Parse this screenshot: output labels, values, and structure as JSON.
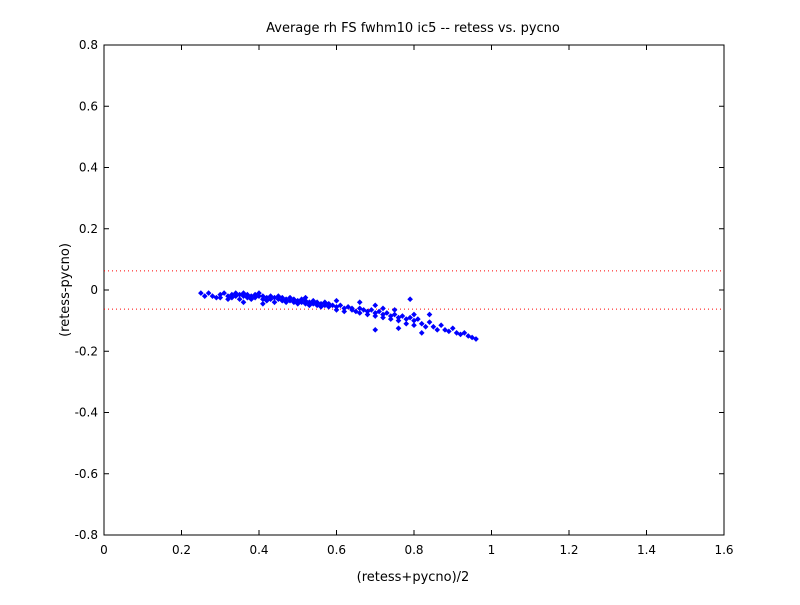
{
  "chart_data": {
    "type": "scatter",
    "title": "Average rh FS fwhm10 ic5 -- retess vs. pycno",
    "xlabel": "(retess+pycno)/2",
    "ylabel": "(retess-pycno)",
    "xlim": [
      0,
      1.6
    ],
    "ylim": [
      -0.8,
      0.8
    ],
    "x_ticks": [
      "0",
      "0.2",
      "0.4",
      "0.6",
      "0.8",
      "1",
      "1.2",
      "1.4",
      "1.6"
    ],
    "y_ticks": [
      "-0.8",
      "-0.6",
      "-0.4",
      "-0.2",
      "0",
      "0.2",
      "0.4",
      "0.6",
      "0.8"
    ],
    "grid": false,
    "reference_lines": [
      0.0625,
      -0.0625
    ],
    "series": [
      {
        "color": "#0000ff",
        "marker": "diamond",
        "points": [
          [
            0.25,
            -0.01
          ],
          [
            0.26,
            -0.02
          ],
          [
            0.27,
            -0.01
          ],
          [
            0.28,
            -0.02
          ],
          [
            0.29,
            -0.025
          ],
          [
            0.3,
            -0.015
          ],
          [
            0.3,
            -0.025
          ],
          [
            0.31,
            -0.01
          ],
          [
            0.32,
            -0.02
          ],
          [
            0.32,
            -0.03
          ],
          [
            0.33,
            -0.015
          ],
          [
            0.33,
            -0.025
          ],
          [
            0.34,
            -0.01
          ],
          [
            0.34,
            -0.02
          ],
          [
            0.35,
            -0.015
          ],
          [
            0.35,
            -0.03
          ],
          [
            0.36,
            -0.02
          ],
          [
            0.36,
            -0.01
          ],
          [
            0.37,
            -0.025
          ],
          [
            0.37,
            -0.015
          ],
          [
            0.38,
            -0.02
          ],
          [
            0.38,
            -0.03
          ],
          [
            0.39,
            -0.015
          ],
          [
            0.39,
            -0.025
          ],
          [
            0.4,
            -0.02
          ],
          [
            0.4,
            -0.01
          ],
          [
            0.41,
            -0.03
          ],
          [
            0.41,
            -0.02
          ],
          [
            0.42,
            -0.025
          ],
          [
            0.42,
            -0.035
          ],
          [
            0.43,
            -0.02
          ],
          [
            0.43,
            -0.03
          ],
          [
            0.44,
            -0.025
          ],
          [
            0.44,
            -0.04
          ],
          [
            0.45,
            -0.03
          ],
          [
            0.45,
            -0.02
          ],
          [
            0.46,
            -0.035
          ],
          [
            0.46,
            -0.025
          ],
          [
            0.47,
            -0.03
          ],
          [
            0.47,
            -0.04
          ],
          [
            0.48,
            -0.035
          ],
          [
            0.48,
            -0.025
          ],
          [
            0.49,
            -0.04
          ],
          [
            0.49,
            -0.03
          ],
          [
            0.5,
            -0.035
          ],
          [
            0.5,
            -0.045
          ],
          [
            0.51,
            -0.03
          ],
          [
            0.51,
            -0.04
          ],
          [
            0.52,
            -0.045
          ],
          [
            0.52,
            -0.035
          ],
          [
            0.53,
            -0.04
          ],
          [
            0.53,
            -0.05
          ],
          [
            0.54,
            -0.045
          ],
          [
            0.54,
            -0.035
          ],
          [
            0.55,
            -0.05
          ],
          [
            0.55,
            -0.04
          ],
          [
            0.56,
            -0.045
          ],
          [
            0.56,
            -0.055
          ],
          [
            0.57,
            -0.05
          ],
          [
            0.57,
            -0.04
          ],
          [
            0.58,
            -0.055
          ],
          [
            0.58,
            -0.045
          ],
          [
            0.59,
            -0.05
          ],
          [
            0.6,
            -0.055
          ],
          [
            0.6,
            -0.065
          ],
          [
            0.61,
            -0.05
          ],
          [
            0.62,
            -0.06
          ],
          [
            0.62,
            -0.07
          ],
          [
            0.63,
            -0.055
          ],
          [
            0.64,
            -0.065
          ],
          [
            0.64,
            -0.06
          ],
          [
            0.65,
            -0.07
          ],
          [
            0.66,
            -0.06
          ],
          [
            0.66,
            -0.075
          ],
          [
            0.67,
            -0.065
          ],
          [
            0.68,
            -0.07
          ],
          [
            0.68,
            -0.08
          ],
          [
            0.69,
            -0.065
          ],
          [
            0.7,
            -0.075
          ],
          [
            0.7,
            -0.085
          ],
          [
            0.71,
            -0.07
          ],
          [
            0.72,
            -0.08
          ],
          [
            0.72,
            -0.09
          ],
          [
            0.73,
            -0.075
          ],
          [
            0.74,
            -0.085
          ],
          [
            0.74,
            -0.095
          ],
          [
            0.75,
            -0.08
          ],
          [
            0.76,
            -0.09
          ],
          [
            0.76,
            -0.1
          ],
          [
            0.77,
            -0.085
          ],
          [
            0.78,
            -0.095
          ],
          [
            0.78,
            -0.11
          ],
          [
            0.79,
            -0.09
          ],
          [
            0.8,
            -0.1
          ],
          [
            0.8,
            -0.115
          ],
          [
            0.81,
            -0.095
          ],
          [
            0.82,
            -0.11
          ],
          [
            0.83,
            -0.12
          ],
          [
            0.84,
            -0.105
          ],
          [
            0.85,
            -0.12
          ],
          [
            0.86,
            -0.13
          ],
          [
            0.87,
            -0.115
          ],
          [
            0.88,
            -0.13
          ],
          [
            0.89,
            -0.135
          ],
          [
            0.9,
            -0.125
          ],
          [
            0.91,
            -0.14
          ],
          [
            0.92,
            -0.145
          ],
          [
            0.93,
            -0.14
          ],
          [
            0.94,
            -0.15
          ],
          [
            0.95,
            -0.155
          ],
          [
            0.96,
            -0.16
          ],
          [
            0.36,
            -0.04
          ],
          [
            0.41,
            -0.045
          ],
          [
            0.52,
            -0.025
          ],
          [
            0.6,
            -0.035
          ],
          [
            0.66,
            -0.04
          ],
          [
            0.7,
            -0.05
          ],
          [
            0.72,
            -0.06
          ],
          [
            0.75,
            -0.065
          ],
          [
            0.8,
            -0.08
          ],
          [
            0.79,
            -0.03
          ],
          [
            0.84,
            -0.08
          ],
          [
            0.7,
            -0.13
          ],
          [
            0.76,
            -0.125
          ],
          [
            0.82,
            -0.14
          ]
        ]
      }
    ]
  }
}
